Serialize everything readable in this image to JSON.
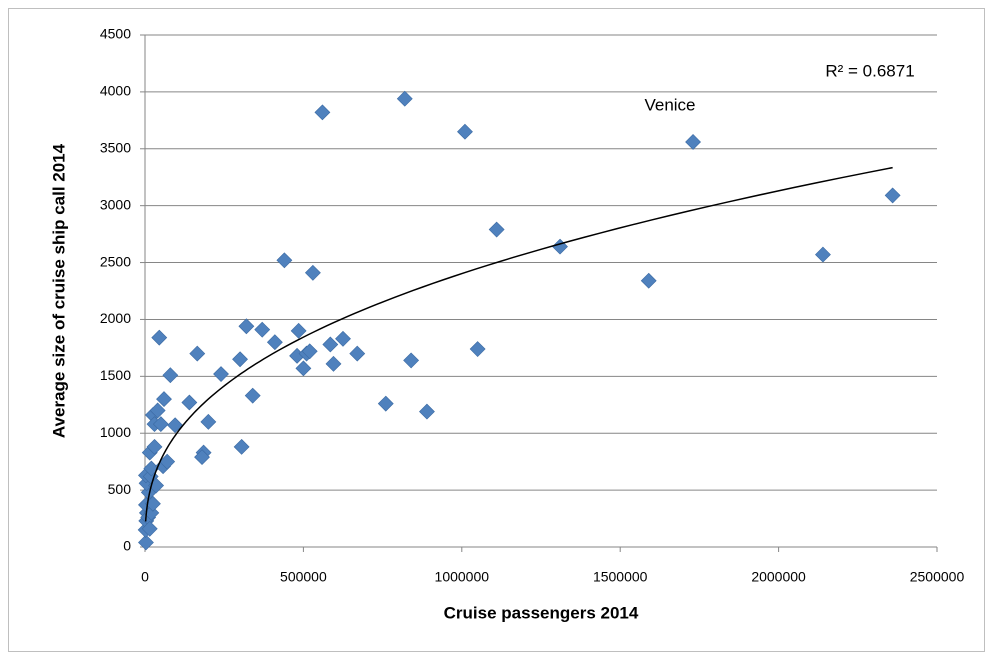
{
  "chart_data": {
    "type": "scatter",
    "x_label": "Cruise passengers 2014",
    "y_label": "Average size of cruise ship call 2014",
    "x": [
      3000,
      2000,
      4000,
      6000,
      3000,
      10000,
      15000,
      20000,
      25000,
      12000,
      5000,
      3000,
      18000,
      35000,
      20000,
      57000,
      70000,
      15000,
      30000,
      25000,
      40000,
      30000,
      50000,
      60000,
      80000,
      95000,
      45000,
      140000,
      165000,
      185000,
      180000,
      200000,
      240000,
      305000,
      300000,
      320000,
      340000,
      370000,
      410000,
      440000,
      480000,
      485000,
      500000,
      510000,
      530000,
      520000,
      560000,
      585000,
      595000,
      625000,
      670000,
      760000,
      820000,
      840000,
      890000,
      1010000,
      1050000,
      1110000,
      1310000,
      1590000,
      1730000,
      2140000,
      2360000
    ],
    "values": [
      40,
      150,
      230,
      300,
      370,
      260,
      160,
      300,
      380,
      480,
      560,
      630,
      620,
      540,
      690,
      710,
      750,
      830,
      880,
      1160,
      1200,
      1080,
      1080,
      1300,
      1510,
      1070,
      1840,
      1270,
      1700,
      830,
      790,
      1100,
      1520,
      880,
      1650,
      1940,
      1330,
      1910,
      1800,
      2520,
      1680,
      1900,
      1570,
      1700,
      2410,
      1720,
      3820,
      1780,
      1610,
      1830,
      1700,
      1260,
      3940,
      1640,
      1190,
      3650,
      1740,
      2790,
      2640,
      2340,
      3560,
      2570,
      3090
    ],
    "color": "#4f81bd",
    "trendline": "power",
    "annotations": [
      "Venice",
      "R² = 0.6871"
    ],
    "xlim": [
      0,
      2500000
    ],
    "xticks": [
      0,
      500000,
      1000000,
      1500000,
      2000000,
      2500000
    ],
    "ylim": [
      0,
      4500
    ],
    "yticks": [
      0,
      500,
      1000,
      1500,
      2000,
      2500,
      3000,
      3500,
      4000,
      4500
    ],
    "grid": true
  }
}
